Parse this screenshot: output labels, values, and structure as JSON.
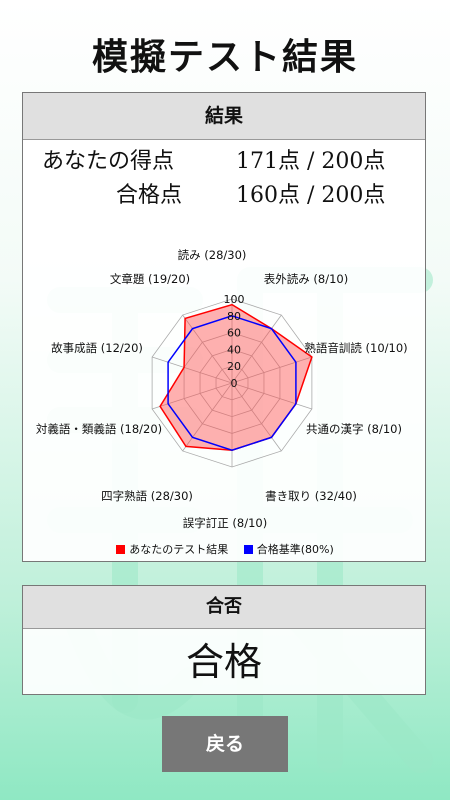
{
  "page": {
    "title": "模擬テスト結果",
    "colors": {
      "yours": "#ff0000",
      "pass": "#0000ff",
      "fill": "rgba(255,80,80,0.45)"
    }
  },
  "result": {
    "header": "結果",
    "score_label": "あなたの得点",
    "score_value": "171点 / 200点",
    "pass_label": "合格点",
    "pass_value": "160点 / 200点"
  },
  "chart_data": {
    "type": "radar",
    "categories": [
      "読み (28/30)",
      "表外読み (8/10)",
      "熟語音訓読 (10/10)",
      "共通の漢字 (8/10)",
      "書き取り (32/40)",
      "誤字訂正 (8/10)",
      "四字熟語 (28/30)",
      "対義語・類義語 (18/20)",
      "故事成語 (12/20)",
      "文章題 (19/20)"
    ],
    "scale_ticks": [
      "0",
      "20",
      "40",
      "60",
      "80",
      "100"
    ],
    "range": [
      0,
      100
    ],
    "series": [
      {
        "name": "あなたのテスト結果",
        "color": "#ff0000",
        "values": [
          93.3,
          80,
          100,
          80,
          80,
          80,
          93.3,
          90,
          60,
          95
        ]
      },
      {
        "name": "合格基準(80%)",
        "color": "#0000ff",
        "values": [
          80,
          80,
          80,
          80,
          80,
          80,
          80,
          80,
          80,
          80
        ]
      }
    ]
  },
  "verdict": {
    "header": "合否",
    "value": "合格"
  },
  "back_button": {
    "label": "戻る"
  }
}
